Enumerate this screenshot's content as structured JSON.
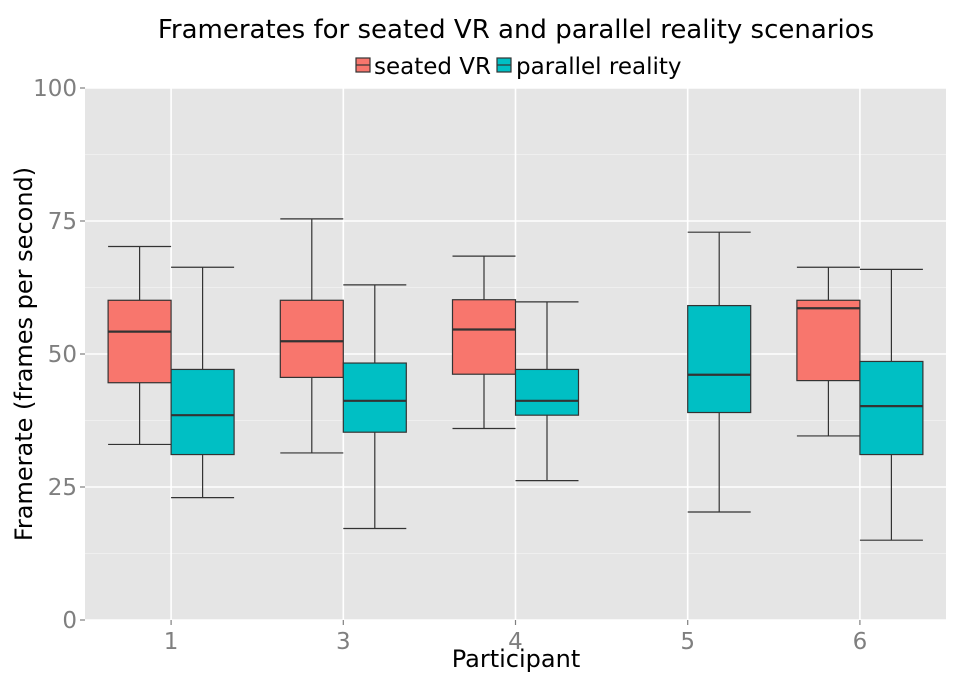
{
  "chart_data": {
    "type": "boxplot",
    "title": "Framerates for seated VR and parallel reality scenarios",
    "xlabel": "Participant",
    "ylabel": "Framerate (frames per second)",
    "categories": [
      "1",
      "3",
      "4",
      "5",
      "6"
    ],
    "ylim": [
      0,
      100
    ],
    "yticks": [
      0,
      25,
      50,
      75,
      100
    ],
    "grid": true,
    "legend_position": "top",
    "series": [
      {
        "name": "seated VR",
        "color": "#F8766D",
        "boxes": [
          {
            "category": "1",
            "min": 33,
            "q1": 44.6,
            "median": 54.2,
            "q3": 60.1,
            "max": 70.2
          },
          {
            "category": "3",
            "min": 31.4,
            "q1": 45.6,
            "median": 52.4,
            "q3": 60.1,
            "max": 75.4
          },
          {
            "category": "4",
            "min": 36,
            "q1": 46.2,
            "median": 54.6,
            "q3": 60.2,
            "max": 68.4
          },
          {
            "category": "6",
            "min": 34.6,
            "q1": 45,
            "median": 58.6,
            "q3": 60.1,
            "max": 66.3
          }
        ]
      },
      {
        "name": "parallel reality",
        "color": "#00BFC4",
        "boxes": [
          {
            "category": "1",
            "min": 23,
            "q1": 31.1,
            "median": 38.5,
            "q3": 47.1,
            "max": 66.3
          },
          {
            "category": "3",
            "min": 17.2,
            "q1": 35.3,
            "median": 41.2,
            "q3": 48.3,
            "max": 63
          },
          {
            "category": "4",
            "min": 26.2,
            "q1": 38.5,
            "median": 41.2,
            "q3": 47.1,
            "max": 59.8
          },
          {
            "category": "5",
            "min": 20.3,
            "q1": 39,
            "median": 46.1,
            "q3": 59.1,
            "max": 72.9
          },
          {
            "category": "6",
            "min": 15,
            "q1": 31.1,
            "median": 40.2,
            "q3": 48.6,
            "max": 65.9
          }
        ]
      }
    ]
  }
}
